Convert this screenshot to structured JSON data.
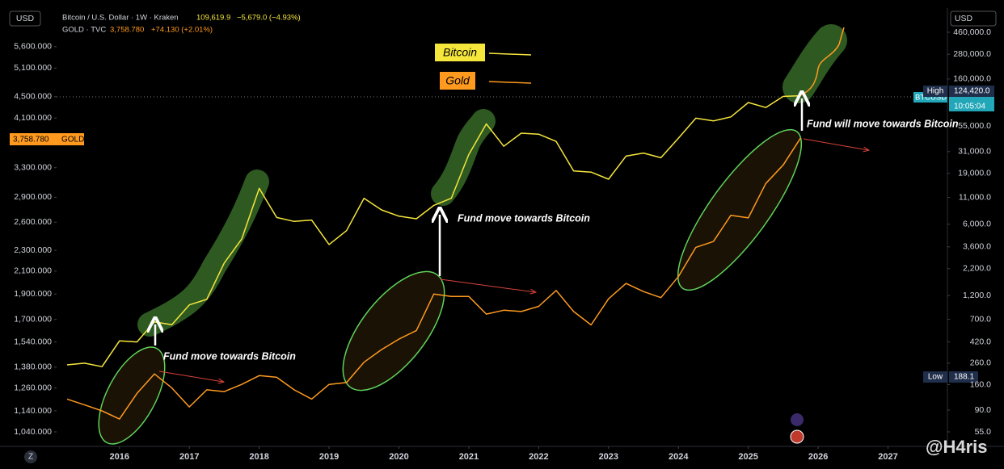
{
  "header": {
    "left_currency": "USD",
    "right_currency": "USD",
    "btc_symbol": "Bitcoin / U.S. Dollar · 1W · Kraken",
    "btc_last": "109,619.9",
    "btc_change": "−5,679.0 (−4.93%)",
    "gold_symbol": "GOLD · TVC",
    "gold_last": "3,758.780",
    "gold_change": "+74.130 (+2.01%)"
  },
  "price_labels": {
    "gold_last": "3,758.780",
    "gold_tag": "GOLD",
    "high_tag": "High",
    "high": "124,420.0",
    "btc_tag": "BTCUSD",
    "countdown": "10:05:04",
    "low_tag": "Low",
    "low": "188.1"
  },
  "watermark": "@H4ris",
  "corner": "Z",
  "chart_data": {
    "type": "line",
    "log_scale": true,
    "grid": false,
    "x": [
      2015.25,
      2015.5,
      2015.75,
      2016.0,
      2016.25,
      2016.5,
      2016.75,
      2017.0,
      2017.25,
      2017.5,
      2017.75,
      2018.0,
      2018.25,
      2018.5,
      2018.75,
      2019.0,
      2019.25,
      2019.5,
      2019.75,
      2020.0,
      2020.25,
      2020.5,
      2020.75,
      2021.0,
      2021.25,
      2021.5,
      2021.75,
      2022.0,
      2022.25,
      2022.5,
      2022.75,
      2023.0,
      2023.25,
      2023.5,
      2023.75,
      2024.0,
      2024.25,
      2024.5,
      2024.75,
      2025.0,
      2025.25,
      2025.5,
      2025.75
    ],
    "series": [
      {
        "name": "Bitcoin",
        "color": "#f5e63c",
        "axis": "y2",
        "values": [
          250,
          260,
          240,
          430,
          420,
          660,
          620,
          970,
          1100,
          2500,
          4300,
          13500,
          7000,
          6400,
          6600,
          3800,
          5200,
          10800,
          8300,
          7200,
          6800,
          9200,
          10800,
          29000,
          58000,
          35000,
          47000,
          46000,
          39000,
          20000,
          19500,
          16600,
          28000,
          30000,
          27000,
          42000,
          66000,
          62000,
          68000,
          94000,
          84000,
          108000,
          109620
        ]
      },
      {
        "name": "Gold",
        "color": "#ff9a1f",
        "values": [
          1200,
          1170,
          1140,
          1100,
          1230,
          1340,
          1260,
          1160,
          1250,
          1240,
          1280,
          1330,
          1320,
          1250,
          1200,
          1280,
          1290,
          1410,
          1490,
          1560,
          1620,
          1900,
          1880,
          1880,
          1740,
          1770,
          1760,
          1800,
          1930,
          1760,
          1660,
          1860,
          1990,
          1920,
          1870,
          2050,
          2330,
          2390,
          2680,
          2650,
          3080,
          3340,
          3760
        ]
      }
    ],
    "xlim": [
      2015.1,
      2027.85
    ],
    "xticks": [
      2016,
      2017,
      2018,
      2019,
      2020,
      2021,
      2022,
      2023,
      2024,
      2025,
      2026,
      2027
    ],
    "ylim": [
      976,
      6630
    ],
    "yticks": [
      {
        "value": 5600,
        "label": "5,600.000"
      },
      {
        "value": 5100,
        "label": "5,100.000"
      },
      {
        "value": 4500,
        "label": "4,500.000"
      },
      {
        "value": 4100,
        "label": "4,100.000"
      },
      {
        "value": 3300,
        "label": "3,300.000"
      },
      {
        "value": 2900,
        "label": "2,900.000"
      },
      {
        "value": 2600,
        "label": "2,600.000"
      },
      {
        "value": 2300,
        "label": "2,300.000"
      },
      {
        "value": 2100,
        "label": "2,100.000"
      },
      {
        "value": 1900,
        "label": "1,900.000"
      },
      {
        "value": 1700,
        "label": "1,700.000"
      },
      {
        "value": 1540,
        "label": "1,540.000"
      },
      {
        "value": 1380,
        "label": "1,380.000"
      },
      {
        "value": 1260,
        "label": "1,260.000"
      },
      {
        "value": 1140,
        "label": "1,140.000"
      },
      {
        "value": 1040,
        "label": "1,040.000"
      }
    ],
    "y2lim": [
      39.6,
      795000
    ],
    "y2ticks": [
      {
        "value": 460000,
        "label": "460,000.0"
      },
      {
        "value": 280000,
        "label": "280,000.0"
      },
      {
        "value": 160000,
        "label": "160,000.0"
      },
      {
        "value": 55000,
        "label": "55,000.0"
      },
      {
        "value": 31000,
        "label": "31,000.0"
      },
      {
        "value": 19000,
        "label": "19,000.0"
      },
      {
        "value": 11000,
        "label": "11,000.0"
      },
      {
        "value": 6000,
        "label": "6,000.0"
      },
      {
        "value": 3600,
        "label": "3,600.0"
      },
      {
        "value": 2200,
        "label": "2,200.0"
      },
      {
        "value": 1200,
        "label": "1,200.0"
      },
      {
        "value": 700,
        "label": "700.0"
      },
      {
        "value": 420,
        "label": "420.0"
      },
      {
        "value": 260,
        "label": "260.0"
      },
      {
        "value": 160,
        "label": "160.0"
      },
      {
        "value": 90,
        "label": "90.0"
      },
      {
        "value": 55,
        "label": "55.0"
      }
    ],
    "annotations": [
      "Fund move towards Bitcoin",
      "Fund move towards Bitcoin",
      "Fund will move towards Bitcoin"
    ]
  }
}
